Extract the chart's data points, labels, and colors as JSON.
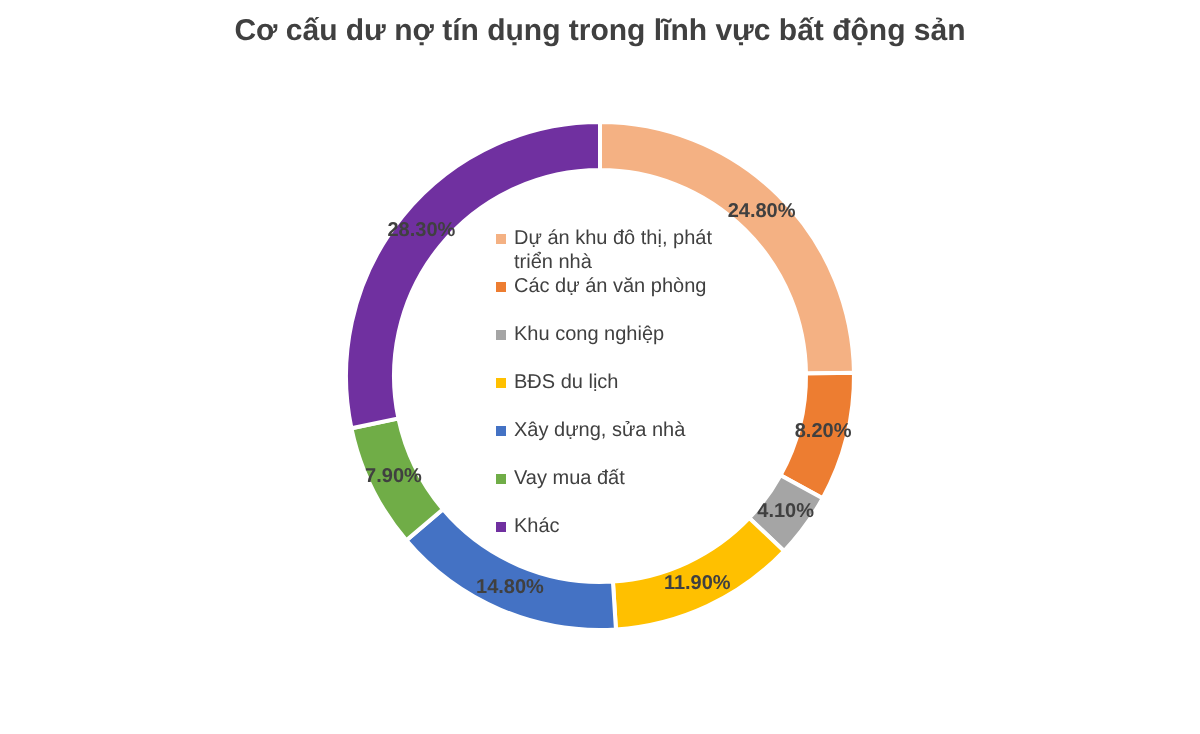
{
  "chart_data": {
    "type": "donut",
    "title": "Cơ cấu dư nợ tín dụng trong lĩnh vực bất động sản",
    "categories": [
      "Dự án khu đô thị, phát triển nhà",
      "Các dự án văn phòng",
      "Khu cong nghiệp",
      "BĐS du lịch",
      "Xây dựng, sửa nhà",
      "Vay mua đất",
      "Khác"
    ],
    "values": [
      24.8,
      8.2,
      4.1,
      11.9,
      14.8,
      7.9,
      28.3
    ],
    "value_labels": [
      "24.80%",
      "8.20%",
      "4.10%",
      "11.90%",
      "14.80%",
      "7.90%",
      "28.30%"
    ],
    "colors": [
      "#f4b183",
      "#ed7d31",
      "#a5a5a5",
      "#ffc000",
      "#4472c4",
      "#70ad47",
      "#7030a0"
    ],
    "legend": "center"
  }
}
